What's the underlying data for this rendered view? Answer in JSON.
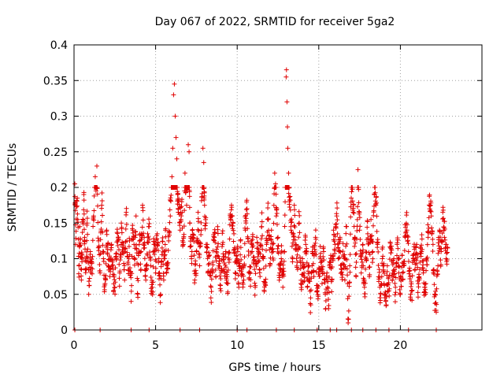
{
  "chart_data": {
    "type": "scatter",
    "title": "Day 067 of 2022, SRMTID for receiver 5ga2",
    "xlabel": "GPS time / hours",
    "ylabel": "SRMTID / TECUs",
    "xlim": [
      0,
      25
    ],
    "ylim": [
      0,
      0.4
    ],
    "xticks": [
      0,
      5,
      10,
      15,
      20
    ],
    "xtick_labels": [
      "0",
      "5",
      "10",
      "15",
      "20"
    ],
    "yticks": [
      0,
      0.05,
      0.1,
      0.15,
      0.2,
      0.25,
      0.3,
      0.35,
      0.4
    ],
    "ytick_labels": [
      "0",
      "0.05",
      "0.1",
      "0.15",
      "0.2",
      "0.25",
      "0.3",
      "0.35",
      "0.4"
    ],
    "grid": true,
    "marker": "+",
    "color": "#e00000",
    "series": [
      {
        "name": "SRMTID",
        "points": [
          [
            0.05,
            0.205
          ],
          [
            0.1,
            0.12
          ],
          [
            0.2,
            0.185
          ],
          [
            0.3,
            0.09
          ],
          [
            0.35,
            0.145
          ],
          [
            0.45,
            0.07
          ],
          [
            0.5,
            0.105
          ],
          [
            0.6,
            0.19
          ],
          [
            0.65,
            0.13
          ],
          [
            0.75,
            0.085
          ],
          [
            0.8,
            0.15
          ],
          [
            0.9,
            0.05
          ],
          [
            1.0,
            0.11
          ],
          [
            1.1,
            0.095
          ],
          [
            1.2,
            0.16
          ],
          [
            1.3,
            0.215
          ],
          [
            1.35,
            0.2
          ],
          [
            1.4,
            0.23
          ],
          [
            1.5,
            0.125
          ],
          [
            1.6,
            0.08
          ],
          [
            1.7,
            0.175
          ],
          [
            1.8,
            0.1
          ],
          [
            1.9,
            0.065
          ],
          [
            2.0,
            0.14
          ],
          [
            2.1,
            0.09
          ],
          [
            2.2,
            0.075
          ],
          [
            2.3,
            0.12
          ],
          [
            2.4,
            0.085
          ],
          [
            2.5,
            0.06
          ],
          [
            2.6,
            0.1
          ],
          [
            2.7,
            0.13
          ],
          [
            2.8,
            0.08
          ],
          [
            2.9,
            0.15
          ],
          [
            3.0,
            0.11
          ],
          [
            3.1,
            0.07
          ],
          [
            3.2,
            0.165
          ],
          [
            3.3,
            0.095
          ],
          [
            3.4,
            0.125
          ],
          [
            3.5,
            0.04
          ],
          [
            3.6,
            0.14
          ],
          [
            3.7,
            0.1
          ],
          [
            3.8,
            0.16
          ],
          [
            3.9,
            0.05
          ],
          [
            4.0,
            0.12
          ],
          [
            4.1,
            0.085
          ],
          [
            4.2,
            0.175
          ],
          [
            4.3,
            0.13
          ],
          [
            4.4,
            0.07
          ],
          [
            4.5,
            0.105
          ],
          [
            4.6,
            0.145
          ],
          [
            4.7,
            0.09
          ],
          [
            4.8,
            0.06
          ],
          [
            4.9,
            0.12
          ],
          [
            5.0,
            0.08
          ],
          [
            5.1,
            0.135
          ],
          [
            5.2,
            0.1
          ],
          [
            5.3,
            0.05
          ],
          [
            5.4,
            0.115
          ],
          [
            5.5,
            0.07
          ],
          [
            5.6,
            0.14
          ],
          [
            5.7,
            0.09
          ],
          [
            5.8,
            0.125
          ],
          [
            5.9,
            0.16
          ],
          [
            6.0,
            0.215
          ],
          [
            6.05,
            0.255
          ],
          [
            6.1,
            0.33
          ],
          [
            6.15,
            0.345
          ],
          [
            6.2,
            0.3
          ],
          [
            6.25,
            0.27
          ],
          [
            6.3,
            0.24
          ],
          [
            6.35,
            0.19
          ],
          [
            6.4,
            0.165
          ],
          [
            6.5,
            0.14
          ],
          [
            6.6,
            0.18
          ],
          [
            6.7,
            0.12
          ],
          [
            6.8,
            0.22
          ],
          [
            6.9,
            0.175
          ],
          [
            7.0,
            0.26
          ],
          [
            7.05,
            0.25
          ],
          [
            7.1,
            0.15
          ],
          [
            7.2,
            0.1
          ],
          [
            7.3,
            0.13
          ],
          [
            7.4,
            0.07
          ],
          [
            7.5,
            0.11
          ],
          [
            7.6,
            0.165
          ],
          [
            7.7,
            0.09
          ],
          [
            7.8,
            0.14
          ],
          [
            7.9,
            0.255
          ],
          [
            7.95,
            0.235
          ],
          [
            8.0,
            0.175
          ],
          [
            8.1,
            0.12
          ],
          [
            8.2,
            0.08
          ],
          [
            8.3,
            0.105
          ],
          [
            8.4,
            0.06
          ],
          [
            8.5,
            0.095
          ],
          [
            8.6,
            0.13
          ],
          [
            8.7,
            0.075
          ],
          [
            8.8,
            0.145
          ],
          [
            8.9,
            0.1
          ],
          [
            9.0,
            0.055
          ],
          [
            9.1,
            0.12
          ],
          [
            9.2,
            0.085
          ],
          [
            9.3,
            0.11
          ],
          [
            9.4,
            0.065
          ],
          [
            9.5,
            0.095
          ],
          [
            9.6,
            0.155
          ],
          [
            9.7,
            0.16
          ],
          [
            9.8,
            0.135
          ],
          [
            9.9,
            0.08
          ],
          [
            10.0,
            0.1
          ],
          [
            10.1,
            0.06
          ],
          [
            10.2,
            0.125
          ],
          [
            10.3,
            0.09
          ],
          [
            10.4,
            0.07
          ],
          [
            10.5,
            0.14
          ],
          [
            10.6,
            0.17
          ],
          [
            10.7,
            0.105
          ],
          [
            10.8,
            0.08
          ],
          [
            10.9,
            0.12
          ],
          [
            11.0,
            0.095
          ],
          [
            11.1,
            0.06
          ],
          [
            11.2,
            0.13
          ],
          [
            11.3,
            0.11
          ],
          [
            11.4,
            0.075
          ],
          [
            11.5,
            0.145
          ],
          [
            11.6,
            0.1
          ],
          [
            11.7,
            0.065
          ],
          [
            11.8,
            0.12
          ],
          [
            11.9,
            0.155
          ],
          [
            12.0,
            0.09
          ],
          [
            12.1,
            0.14
          ],
          [
            12.2,
            0.11
          ],
          [
            12.3,
            0.22
          ],
          [
            12.35,
            0.205
          ],
          [
            12.4,
            0.17
          ],
          [
            12.5,
            0.13
          ],
          [
            12.6,
            0.08
          ],
          [
            12.7,
            0.1
          ],
          [
            12.8,
            0.06
          ],
          [
            12.9,
            0.11
          ],
          [
            13.0,
            0.355
          ],
          [
            13.02,
            0.365
          ],
          [
            13.05,
            0.32
          ],
          [
            13.08,
            0.285
          ],
          [
            13.1,
            0.255
          ],
          [
            13.15,
            0.22
          ],
          [
            13.2,
            0.18
          ],
          [
            13.3,
            0.14
          ],
          [
            13.4,
            0.1
          ],
          [
            13.5,
            0.175
          ],
          [
            13.6,
            0.12
          ],
          [
            13.7,
            0.085
          ],
          [
            13.8,
            0.15
          ],
          [
            13.9,
            0.065
          ],
          [
            14.0,
            0.1
          ],
          [
            14.1,
            0.08
          ],
          [
            14.2,
            0.12
          ],
          [
            14.3,
            0.06
          ],
          [
            14.4,
            0.09
          ],
          [
            14.5,
            0.045
          ],
          [
            14.6,
            0.11
          ],
          [
            14.7,
            0.075
          ],
          [
            14.8,
            0.13
          ],
          [
            14.9,
            0.055
          ],
          [
            15.0,
            0.085
          ],
          [
            15.1,
            0.1
          ],
          [
            15.2,
            0.065
          ],
          [
            15.3,
            0.11
          ],
          [
            15.4,
            0.05
          ],
          [
            15.5,
            0.08
          ],
          [
            15.6,
            0.03
          ],
          [
            15.7,
            0.095
          ],
          [
            15.8,
            0.07
          ],
          [
            15.9,
            0.14
          ],
          [
            16.0,
            0.12
          ],
          [
            16.1,
            0.16
          ],
          [
            16.2,
            0.1
          ],
          [
            16.3,
            0.13
          ],
          [
            16.4,
            0.085
          ],
          [
            16.5,
            0.105
          ],
          [
            16.6,
            0.07
          ],
          [
            16.7,
            0.145
          ],
          [
            16.8,
            0.01
          ],
          [
            16.9,
            0.09
          ],
          [
            17.0,
            0.2
          ],
          [
            17.1,
            0.165
          ],
          [
            17.2,
            0.13
          ],
          [
            17.3,
            0.095
          ],
          [
            17.4,
            0.225
          ],
          [
            17.5,
            0.14
          ],
          [
            17.6,
            0.08
          ],
          [
            17.7,
            0.12
          ],
          [
            17.8,
            0.06
          ],
          [
            17.9,
            0.1
          ],
          [
            18.0,
            0.135
          ],
          [
            18.1,
            0.075
          ],
          [
            18.2,
            0.155
          ],
          [
            18.3,
            0.11
          ],
          [
            18.4,
            0.19
          ],
          [
            18.5,
            0.175
          ],
          [
            18.6,
            0.12
          ],
          [
            18.7,
            0.085
          ],
          [
            18.8,
            0.05
          ],
          [
            18.9,
            0.1
          ],
          [
            19.0,
            0.065
          ],
          [
            19.1,
            0.04
          ],
          [
            19.2,
            0.09
          ],
          [
            19.3,
            0.055
          ],
          [
            19.4,
            0.115
          ],
          [
            19.5,
            0.07
          ],
          [
            19.6,
            0.1
          ],
          [
            19.7,
            0.06
          ],
          [
            19.8,
            0.12
          ],
          [
            19.9,
            0.08
          ],
          [
            20.0,
            0.05
          ],
          [
            20.1,
            0.105
          ],
          [
            20.2,
            0.09
          ],
          [
            20.3,
            0.13
          ],
          [
            20.4,
            0.14
          ],
          [
            20.5,
            0.11
          ],
          [
            20.6,
            0.075
          ],
          [
            20.7,
            0.055
          ],
          [
            20.8,
            0.1
          ],
          [
            20.9,
            0.085
          ],
          [
            21.0,
            0.12
          ],
          [
            21.1,
            0.065
          ],
          [
            21.2,
            0.095
          ],
          [
            21.3,
            0.11
          ],
          [
            21.4,
            0.08
          ],
          [
            21.5,
            0.06
          ],
          [
            21.6,
            0.1
          ],
          [
            21.7,
            0.13
          ],
          [
            21.8,
            0.17
          ],
          [
            21.9,
            0.16
          ],
          [
            22.0,
            0.12
          ],
          [
            22.1,
            0.05
          ],
          [
            22.2,
            0.025
          ],
          [
            22.3,
            0.09
          ],
          [
            22.4,
            0.14
          ],
          [
            22.5,
            0.11
          ],
          [
            22.6,
            0.165
          ],
          [
            22.7,
            0.13
          ],
          [
            22.8,
            0.1
          ],
          [
            22.9,
            0.115
          ]
        ],
        "zero_points_x": [
          0.05,
          1.6,
          3.5,
          4.6,
          6.5,
          7.7,
          10.0,
          10.6,
          12.4,
          13.5,
          14.9,
          15.7,
          16.1,
          17.0,
          17.7,
          18.5,
          19.3,
          20.5,
          22.2
        ]
      }
    ]
  }
}
